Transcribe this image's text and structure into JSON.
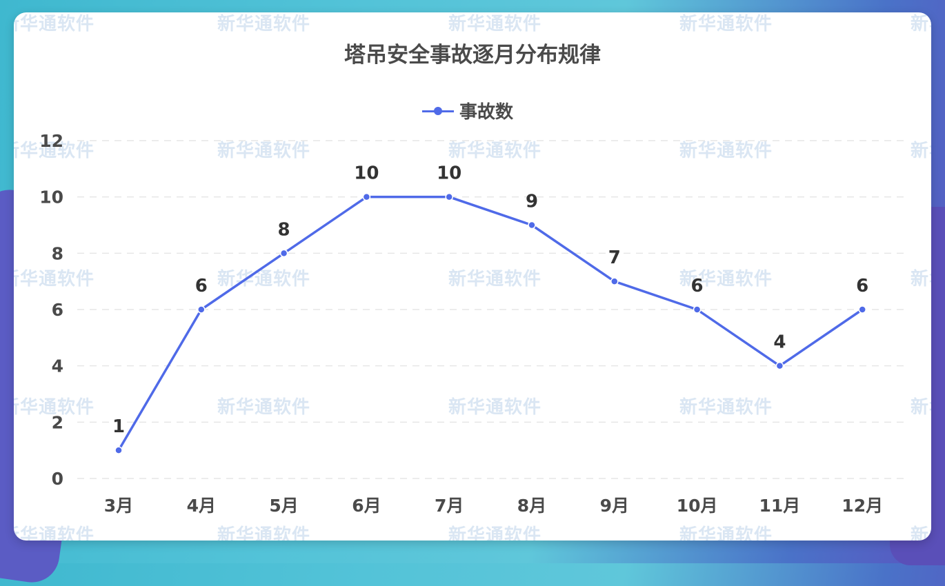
{
  "watermark": {
    "text": "新华通软件"
  },
  "chart_data": {
    "type": "line",
    "title": "塔吊安全事故逐月分布规律",
    "categories": [
      "3月",
      "4月",
      "5月",
      "6月",
      "7月",
      "8月",
      "9月",
      "10月",
      "11月",
      "12月"
    ],
    "series": [
      {
        "name": "事故数",
        "values": [
          1,
          6,
          8,
          10,
          10,
          9,
          7,
          6,
          4,
          6
        ],
        "color": "#4f6ae8"
      }
    ],
    "ylim": [
      0,
      12
    ],
    "yticks": [
      0,
      2,
      4,
      6,
      8,
      10,
      12
    ],
    "grid": true,
    "legend": "top-center",
    "show_data_labels": true
  }
}
